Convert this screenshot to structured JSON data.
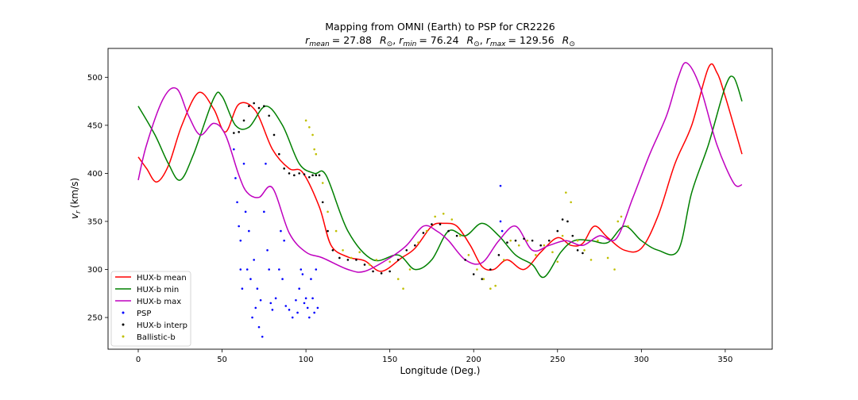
{
  "chart_data": {
    "type": "line",
    "title": "Mapping from OMNI (Earth) to PSP for CR2226",
    "subtitle": {
      "mean_label": "r",
      "mean_sub": "mean",
      "mean_value": "= 27.88",
      "min_label": "r",
      "min_sub": "min",
      "min_value": "= 76.24",
      "max_label": "r",
      "max_sub": "max",
      "max_value": "= 129.56",
      "unit": "R",
      "unit_sub": "⊙"
    },
    "xlabel": "Longitude (Deg.)",
    "ylabel_main": "v",
    "ylabel_sub": "r",
    "ylabel_unit": "(km/s)",
    "xlim": [
      -18,
      378
    ],
    "ylim": [
      217,
      530
    ],
    "xticks": [
      0,
      50,
      100,
      150,
      200,
      250,
      300,
      350
    ],
    "yticks": [
      250,
      300,
      350,
      400,
      450,
      500
    ],
    "legend_position": "lower-left",
    "series": [
      {
        "name": "HUX-b mean",
        "kind": "line",
        "color": "#ff0000",
        "points": [
          [
            0,
            417
          ],
          [
            5,
            405
          ],
          [
            11,
            391
          ],
          [
            18,
            408
          ],
          [
            26,
            450
          ],
          [
            36,
            484
          ],
          [
            45,
            467
          ],
          [
            52,
            443
          ],
          [
            60,
            472
          ],
          [
            70,
            465
          ],
          [
            80,
            425
          ],
          [
            90,
            405
          ],
          [
            98,
            401
          ],
          [
            108,
            365
          ],
          [
            115,
            325
          ],
          [
            125,
            313
          ],
          [
            135,
            309
          ],
          [
            145,
            298
          ],
          [
            157,
            312
          ],
          [
            165,
            322
          ],
          [
            175,
            345
          ],
          [
            182,
            348
          ],
          [
            190,
            345
          ],
          [
            198,
            325
          ],
          [
            205,
            303
          ],
          [
            212,
            300
          ],
          [
            220,
            310
          ],
          [
            230,
            300
          ],
          [
            240,
            318
          ],
          [
            250,
            333
          ],
          [
            258,
            325
          ],
          [
            265,
            327
          ],
          [
            272,
            345
          ],
          [
            280,
            333
          ],
          [
            290,
            320
          ],
          [
            300,
            322
          ],
          [
            310,
            356
          ],
          [
            320,
            410
          ],
          [
            330,
            450
          ],
          [
            340,
            510
          ],
          [
            345,
            505
          ],
          [
            350,
            480
          ],
          [
            360,
            420
          ]
        ]
      },
      {
        "name": "HUX-b min",
        "kind": "line",
        "color": "#008000",
        "points": [
          [
            0,
            470
          ],
          [
            10,
            440
          ],
          [
            18,
            410
          ],
          [
            25,
            393
          ],
          [
            33,
            420
          ],
          [
            45,
            478
          ],
          [
            50,
            480
          ],
          [
            58,
            450
          ],
          [
            66,
            448
          ],
          [
            76,
            470
          ],
          [
            86,
            450
          ],
          [
            96,
            410
          ],
          [
            105,
            400
          ],
          [
            112,
            398
          ],
          [
            125,
            340
          ],
          [
            140,
            310
          ],
          [
            155,
            315
          ],
          [
            165,
            300
          ],
          [
            175,
            310
          ],
          [
            185,
            340
          ],
          [
            195,
            335
          ],
          [
            205,
            348
          ],
          [
            215,
            335
          ],
          [
            225,
            315
          ],
          [
            235,
            305
          ],
          [
            242,
            292
          ],
          [
            252,
            318
          ],
          [
            260,
            330
          ],
          [
            270,
            330
          ],
          [
            280,
            328
          ],
          [
            290,
            345
          ],
          [
            300,
            330
          ],
          [
            310,
            320
          ],
          [
            322,
            320
          ],
          [
            330,
            380
          ],
          [
            340,
            430
          ],
          [
            350,
            490
          ],
          [
            355,
            500
          ],
          [
            360,
            475
          ]
        ]
      },
      {
        "name": "HUX-b max",
        "kind": "line",
        "color": "#bf00bf",
        "points": [
          [
            0,
            393
          ],
          [
            5,
            430
          ],
          [
            15,
            478
          ],
          [
            23,
            488
          ],
          [
            30,
            460
          ],
          [
            37,
            440
          ],
          [
            45,
            452
          ],
          [
            52,
            440
          ],
          [
            60,
            398
          ],
          [
            65,
            380
          ],
          [
            72,
            375
          ],
          [
            80,
            385
          ],
          [
            90,
            338
          ],
          [
            100,
            318
          ],
          [
            110,
            312
          ],
          [
            125,
            300
          ],
          [
            135,
            298
          ],
          [
            150,
            312
          ],
          [
            160,
            325
          ],
          [
            170,
            345
          ],
          [
            178,
            340
          ],
          [
            185,
            330
          ],
          [
            195,
            310
          ],
          [
            205,
            307
          ],
          [
            215,
            330
          ],
          [
            225,
            345
          ],
          [
            235,
            320
          ],
          [
            245,
            325
          ],
          [
            255,
            330
          ],
          [
            265,
            325
          ],
          [
            275,
            335
          ],
          [
            285,
            332
          ],
          [
            295,
            375
          ],
          [
            305,
            420
          ],
          [
            315,
            460
          ],
          [
            322,
            500
          ],
          [
            327,
            515
          ],
          [
            335,
            490
          ],
          [
            345,
            430
          ],
          [
            355,
            390
          ],
          [
            360,
            388
          ]
        ]
      },
      {
        "name": "PSP",
        "kind": "scatter",
        "color": "#0000ff",
        "points": [
          [
            57,
            425
          ],
          [
            58,
            395
          ],
          [
            59,
            370
          ],
          [
            60,
            345
          ],
          [
            61,
            330
          ],
          [
            61,
            300
          ],
          [
            62,
            280
          ],
          [
            63,
            410
          ],
          [
            64,
            360
          ],
          [
            65,
            300
          ],
          [
            66,
            340
          ],
          [
            67,
            290
          ],
          [
            68,
            250
          ],
          [
            69,
            310
          ],
          [
            70,
            260
          ],
          [
            71,
            280
          ],
          [
            72,
            240
          ],
          [
            73,
            268
          ],
          [
            74,
            230
          ],
          [
            75,
            360
          ],
          [
            76,
            410
          ],
          [
            77,
            320
          ],
          [
            78,
            300
          ],
          [
            79,
            265
          ],
          [
            80,
            258
          ],
          [
            82,
            270
          ],
          [
            84,
            300
          ],
          [
            85,
            340
          ],
          [
            86,
            290
          ],
          [
            87,
            330
          ],
          [
            88,
            262
          ],
          [
            90,
            258
          ],
          [
            92,
            250
          ],
          [
            94,
            268
          ],
          [
            95,
            255
          ],
          [
            96,
            280
          ],
          [
            97,
            300
          ],
          [
            98,
            295
          ],
          [
            99,
            265
          ],
          [
            100,
            270
          ],
          [
            101,
            260
          ],
          [
            102,
            250
          ],
          [
            103,
            290
          ],
          [
            104,
            270
          ],
          [
            105,
            255
          ],
          [
            106,
            300
          ],
          [
            107,
            260
          ],
          [
            216,
            387
          ],
          [
            216,
            350
          ],
          [
            217,
            340
          ]
        ]
      },
      {
        "name": "HUX-b interp",
        "kind": "scatter",
        "color": "#000000",
        "points": [
          [
            57,
            442
          ],
          [
            60,
            443
          ],
          [
            63,
            455
          ],
          [
            66,
            470
          ],
          [
            69,
            473
          ],
          [
            72,
            468
          ],
          [
            75,
            470
          ],
          [
            78,
            460
          ],
          [
            81,
            440
          ],
          [
            84,
            420
          ],
          [
            87,
            405
          ],
          [
            90,
            400
          ],
          [
            93,
            398
          ],
          [
            96,
            400
          ],
          [
            99,
            399
          ],
          [
            102,
            396
          ],
          [
            104,
            398
          ],
          [
            106,
            398
          ],
          [
            108,
            398
          ],
          [
            110,
            370
          ],
          [
            113,
            340
          ],
          [
            116,
            320
          ],
          [
            120,
            312
          ],
          [
            125,
            310
          ],
          [
            130,
            310
          ],
          [
            135,
            305
          ],
          [
            140,
            298
          ],
          [
            145,
            296
          ],
          [
            150,
            298
          ],
          [
            155,
            310
          ],
          [
            160,
            320
          ],
          [
            165,
            325
          ],
          [
            170,
            338
          ],
          [
            175,
            347
          ],
          [
            180,
            347
          ],
          [
            185,
            340
          ],
          [
            190,
            335
          ],
          [
            195,
            310
          ],
          [
            200,
            295
          ],
          [
            205,
            290
          ],
          [
            210,
            300
          ],
          [
            215,
            315
          ],
          [
            220,
            328
          ],
          [
            225,
            330
          ],
          [
            230,
            332
          ],
          [
            235,
            330
          ],
          [
            240,
            325
          ],
          [
            245,
            330
          ],
          [
            250,
            340
          ],
          [
            253,
            352
          ],
          [
            256,
            350
          ],
          [
            259,
            335
          ],
          [
            262,
            320
          ],
          [
            265,
            317
          ]
        ]
      },
      {
        "name": "Ballistic-b",
        "kind": "scatter",
        "color": "#bfbf00",
        "points": [
          [
            100,
            455
          ],
          [
            102,
            448
          ],
          [
            104,
            440
          ],
          [
            105,
            425
          ],
          [
            106,
            420
          ],
          [
            110,
            390
          ],
          [
            113,
            360
          ],
          [
            118,
            340
          ],
          [
            122,
            320
          ],
          [
            127,
            312
          ],
          [
            132,
            318
          ],
          [
            138,
            305
          ],
          [
            142,
            310
          ],
          [
            150,
            308
          ],
          [
            155,
            290
          ],
          [
            158,
            280
          ],
          [
            162,
            300
          ],
          [
            167,
            328
          ],
          [
            172,
            340
          ],
          [
            177,
            355
          ],
          [
            182,
            358
          ],
          [
            187,
            352
          ],
          [
            192,
            335
          ],
          [
            197,
            315
          ],
          [
            202,
            300
          ],
          [
            206,
            290
          ],
          [
            210,
            280
          ],
          [
            213,
            283
          ],
          [
            218,
            310
          ],
          [
            222,
            330
          ],
          [
            227,
            325
          ],
          [
            232,
            330
          ],
          [
            237,
            315
          ],
          [
            242,
            325
          ],
          [
            247,
            318
          ],
          [
            250,
            308
          ],
          [
            253,
            335
          ],
          [
            255,
            380
          ],
          [
            258,
            370
          ],
          [
            262,
            330
          ],
          [
            266,
            320
          ],
          [
            270,
            310
          ],
          [
            274,
            330
          ],
          [
            280,
            312
          ],
          [
            284,
            300
          ],
          [
            286,
            350
          ],
          [
            288,
            355
          ],
          [
            292,
            345
          ]
        ]
      }
    ]
  }
}
